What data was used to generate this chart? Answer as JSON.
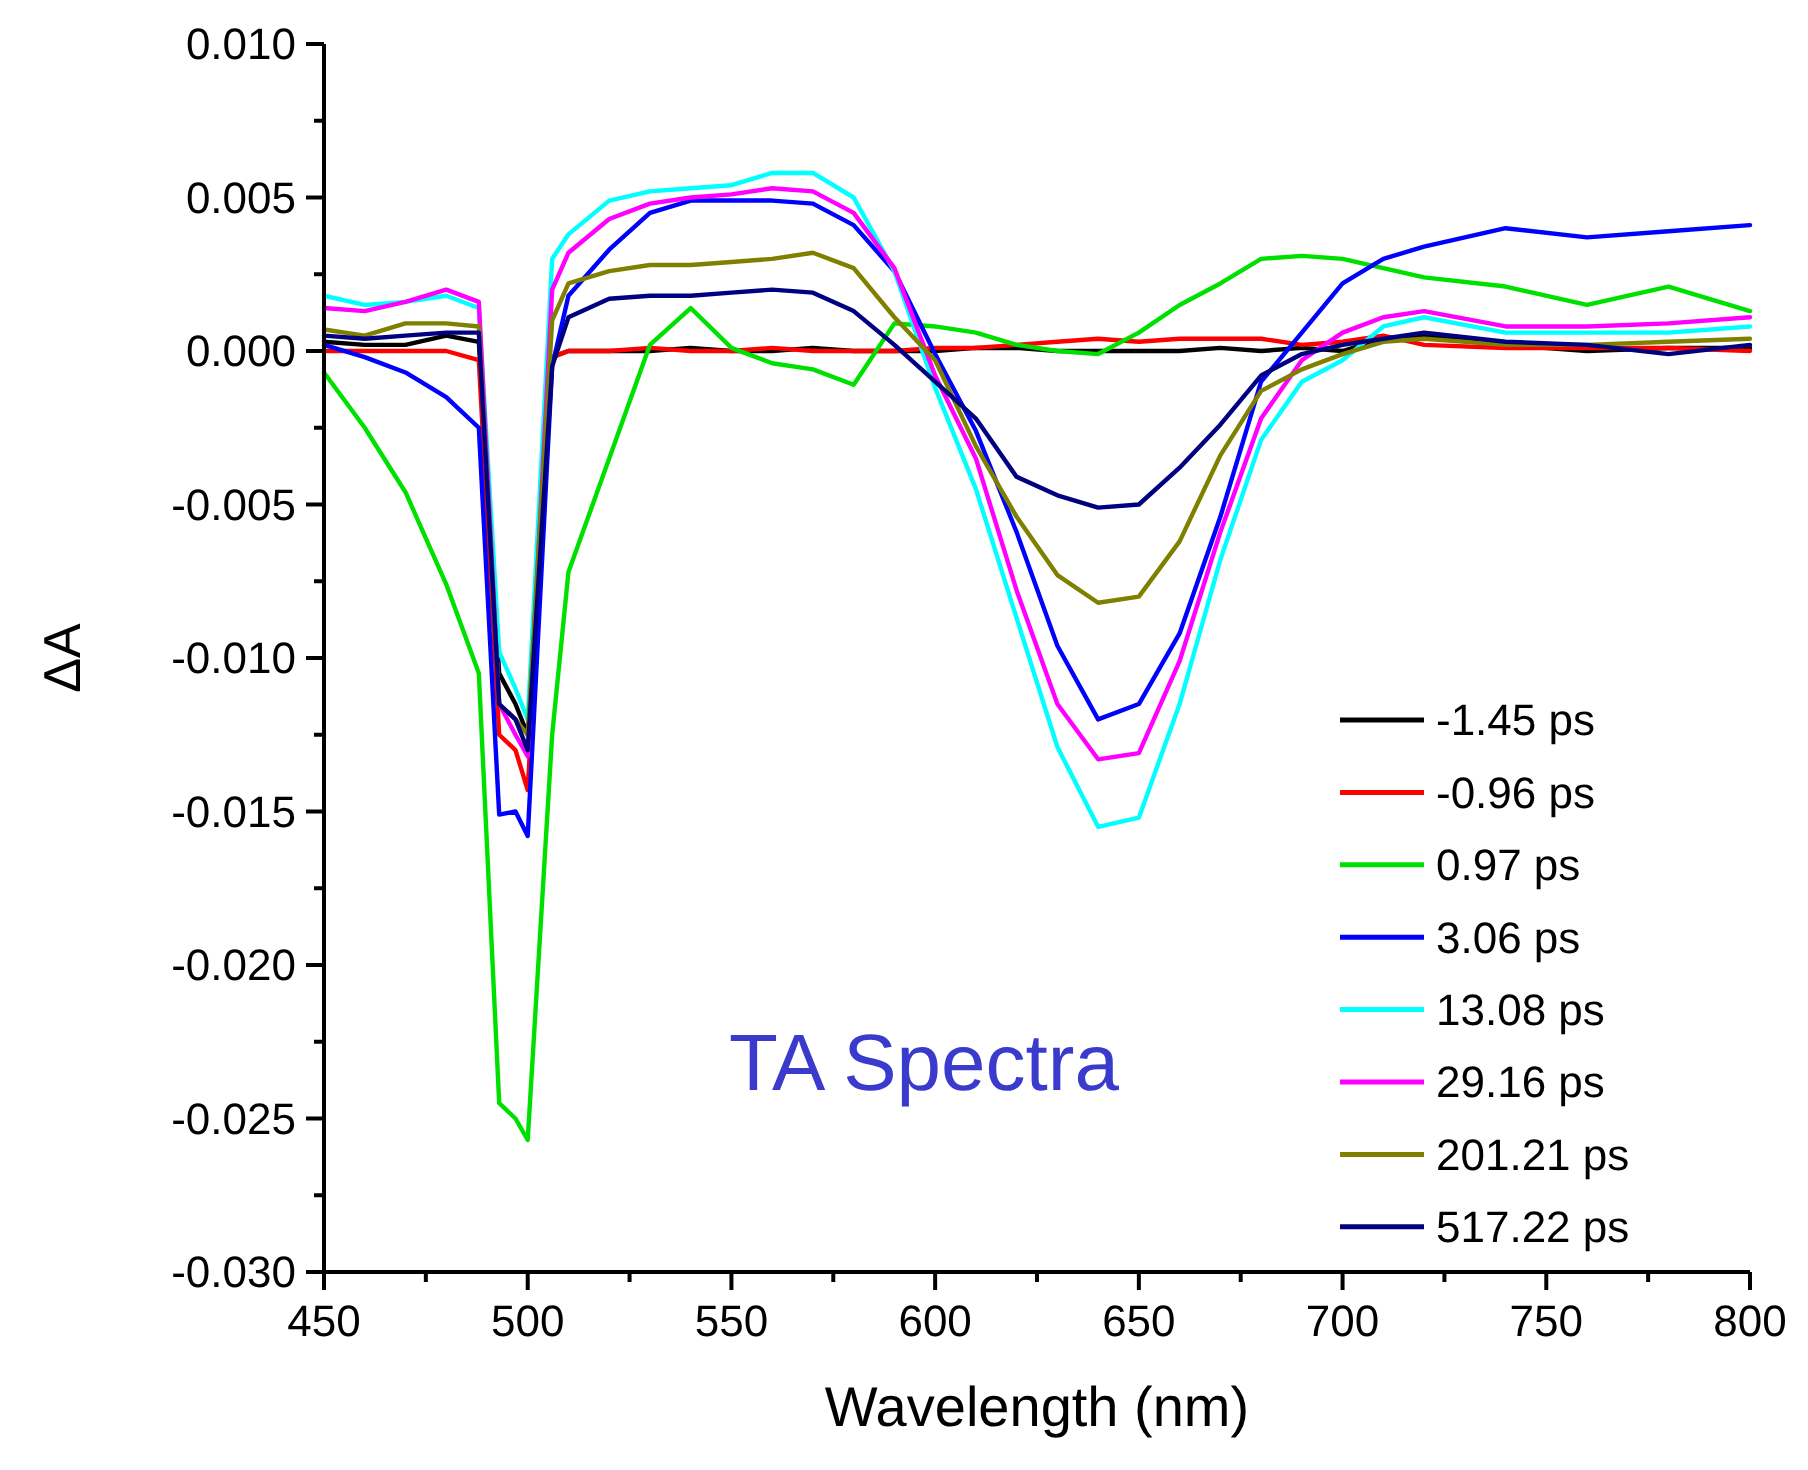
{
  "chart_data": {
    "type": "line",
    "xlabel": "Wavelength (nm)",
    "ylabel": "ΔA",
    "annotations": [
      "TA Spectra"
    ],
    "legend": "bottom right",
    "grid": false,
    "line_style": "solid",
    "marker": "none",
    "x": [
      450,
      460,
      470,
      480,
      488,
      493,
      497,
      500,
      506,
      510,
      520,
      530,
      540,
      550,
      560,
      570,
      580,
      590,
      600,
      610,
      620,
      630,
      640,
      650,
      660,
      670,
      680,
      690,
      700,
      710,
      720,
      740,
      760,
      780,
      800
    ],
    "xlim": [
      450,
      800
    ],
    "ylim": [
      -0.03,
      0.01
    ],
    "xticks": [
      450,
      {
        "value": 475,
        "label": null
      },
      500,
      {
        "value": 525,
        "label": null
      },
      550,
      {
        "value": 575,
        "label": null
      },
      600,
      {
        "value": 625,
        "label": null
      },
      650,
      {
        "value": 675,
        "label": null
      },
      700,
      {
        "value": 725,
        "label": null
      },
      750,
      {
        "value": 775,
        "label": null
      },
      800
    ],
    "yticks": [
      {
        "value": 0.01,
        "label": "0.010"
      },
      {
        "value": 0.0075,
        "label": null
      },
      {
        "value": 0.005,
        "label": "0.005"
      },
      {
        "value": 0.0025,
        "label": null
      },
      {
        "value": 0,
        "label": "0.000"
      },
      {
        "value": -0.0025,
        "label": null
      },
      {
        "value": -0.005,
        "label": "-0.005"
      },
      {
        "value": -0.0075,
        "label": null
      },
      {
        "value": -0.01,
        "label": "-0.010"
      },
      {
        "value": -0.0125,
        "label": null
      },
      {
        "value": -0.015,
        "label": "-0.015"
      },
      {
        "value": -0.0175,
        "label": null
      },
      {
        "value": -0.02,
        "label": "-0.020"
      },
      {
        "value": -0.0225,
        "label": null
      },
      {
        "value": -0.025,
        "label": "-0.025"
      },
      {
        "value": -0.0275,
        "label": null
      },
      {
        "value": -0.03,
        "label": "-0.030"
      }
    ],
    "series": [
      {
        "name": "-1.45 ps",
        "color": "#000000",
        "values": [
          0.0003,
          0.0002,
          0.0002,
          0.0005,
          0.0003,
          -0.0105,
          -0.0115,
          -0.0125,
          -0.0002,
          0,
          0,
          0,
          0.0001,
          0,
          0,
          0.0001,
          0,
          0,
          0,
          0.0001,
          0.0001,
          0,
          0,
          0,
          0,
          0.0001,
          0,
          0.0001,
          0,
          0.0004,
          0.0005,
          0.0002,
          0,
          0.0001,
          0.0001
        ]
      },
      {
        "name": "-0.96 ps",
        "color": "#ff0000",
        "values": [
          0,
          0,
          0,
          0,
          -0.0003,
          -0.0125,
          -0.013,
          -0.0143,
          -0.0002,
          0,
          0,
          0.0001,
          0,
          0,
          0.0001,
          0,
          0,
          0,
          0.0001,
          0.0001,
          0.0002,
          0.0003,
          0.0004,
          0.0003,
          0.0004,
          0.0004,
          0.0004,
          0.0002,
          0.0003,
          0.0005,
          0.0002,
          0.0001,
          0.0001,
          0.0001,
          0
        ]
      },
      {
        "name": "0.97 ps",
        "color": "#00e000",
        "values": [
          -0.0007,
          -0.0025,
          -0.0046,
          -0.0076,
          -0.0105,
          -0.0245,
          -0.025,
          -0.0257,
          -0.0125,
          -0.0072,
          -0.0035,
          0.0002,
          0.0014,
          0.0001,
          -0.0004,
          -0.0006,
          -0.0011,
          0.0009,
          0.0008,
          0.0006,
          0.0002,
          0,
          -0.0001,
          0.0006,
          0.0015,
          0.0022,
          0.003,
          0.0031,
          0.003,
          0.0027,
          0.0024,
          0.0021,
          0.0015,
          0.0021,
          0.0013
        ]
      },
      {
        "name": "3.06 ps",
        "color": "#0000ff",
        "values": [
          0.0002,
          -0.0002,
          -0.0007,
          -0.0015,
          -0.0025,
          -0.0151,
          -0.015,
          -0.0158,
          -0.0005,
          0.0018,
          0.0033,
          0.0045,
          0.0049,
          0.0049,
          0.0049,
          0.0048,
          0.0041,
          0.0026,
          -0.0001,
          -0.0026,
          -0.0059,
          -0.0096,
          -0.012,
          -0.0115,
          -0.0092,
          -0.0054,
          -0.001,
          0.0006,
          0.0022,
          0.003,
          0.0034,
          0.004,
          0.0037,
          0.0039,
          0.0041
        ]
      },
      {
        "name": "13.08 ps",
        "color": "#00ffff",
        "values": [
          0.0018,
          0.0015,
          0.0016,
          0.0018,
          0.0014,
          -0.0098,
          -0.011,
          -0.012,
          0.003,
          0.0038,
          0.0049,
          0.0052,
          0.0053,
          0.0054,
          0.0058,
          0.0058,
          0.005,
          0.0026,
          -0.0012,
          -0.0045,
          -0.0087,
          -0.0129,
          -0.0155,
          -0.0152,
          -0.0115,
          -0.0068,
          -0.0029,
          -0.001,
          -0.0003,
          0.0008,
          0.0011,
          0.0006,
          0.0006,
          0.0006,
          0.0008
        ]
      },
      {
        "name": "29.16 ps",
        "color": "#ff00ff",
        "values": [
          0.0014,
          0.0013,
          0.0016,
          0.002,
          0.0016,
          -0.0115,
          -0.0125,
          -0.0132,
          0.002,
          0.0032,
          0.0043,
          0.0048,
          0.005,
          0.0051,
          0.0053,
          0.0052,
          0.0045,
          0.0027,
          -0.0008,
          -0.0035,
          -0.0078,
          -0.0115,
          -0.0133,
          -0.0131,
          -0.0101,
          -0.0059,
          -0.0022,
          -0.0003,
          0.0006,
          0.0011,
          0.0013,
          0.0008,
          0.0008,
          0.0009,
          0.0011
        ]
      },
      {
        "name": "201.21 ps",
        "color": "#808000",
        "values": [
          0.0007,
          0.0005,
          0.0009,
          0.0009,
          0.0008,
          -0.0115,
          -0.012,
          -0.0125,
          0.001,
          0.0022,
          0.0026,
          0.0028,
          0.0028,
          0.0029,
          0.003,
          0.0032,
          0.0027,
          0.0011,
          -0.0003,
          -0.0031,
          -0.0054,
          -0.0073,
          -0.0082,
          -0.008,
          -0.0062,
          -0.0034,
          -0.0013,
          -0.0006,
          -0.0001,
          0.0003,
          0.0004,
          0.0002,
          0.0002,
          0.0003,
          0.0004
        ]
      },
      {
        "name": "517.22 ps",
        "color": "#000080",
        "values": [
          0.0005,
          0.0004,
          0.0005,
          0.0006,
          0.0006,
          -0.0115,
          -0.012,
          -0.013,
          -0.0005,
          0.0011,
          0.0017,
          0.0018,
          0.0018,
          0.0019,
          0.002,
          0.0019,
          0.0013,
          0.0002,
          -0.001,
          -0.0022,
          -0.0041,
          -0.0047,
          -0.0051,
          -0.005,
          -0.0038,
          -0.0024,
          -0.0008,
          -0.0001,
          0.0002,
          0.0004,
          0.0006,
          0.0003,
          0.0002,
          -0.0001,
          0.0002
        ]
      }
    ]
  }
}
